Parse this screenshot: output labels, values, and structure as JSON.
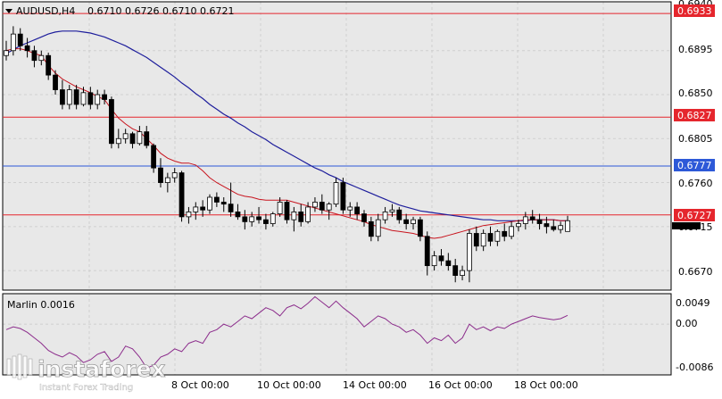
{
  "header": {
    "symbol": "AUDUSD,H4",
    "ohlc": "0.6710 0.6726 0.6710 0.6721"
  },
  "indicator": {
    "label": "Marlin 0.0016",
    "scale": [
      "0.0049",
      "0.00",
      "-0.0086"
    ]
  },
  "price_scale": [
    "0.6940",
    "0.6895",
    "0.6850",
    "0.6805",
    "0.6760",
    "0.6715",
    "0.6670"
  ],
  "price_tags": [
    {
      "value": "0.6933",
      "color": "#e5262d"
    },
    {
      "value": "0.6827",
      "color": "#e5262d"
    },
    {
      "value": "0.6777",
      "color": "#2d59d8"
    },
    {
      "value": "0.6727",
      "color": "#e5262d"
    }
  ],
  "time_labels": [
    "8 Oct 00:00",
    "10 Oct 00:00",
    "14 Oct 00:00",
    "16 Oct 00:00",
    "18 Oct 00:00"
  ],
  "watermark": {
    "brand": "instaforex",
    "tagline": "Instant Forex Trading"
  },
  "colors": {
    "background": "#e8e8e8",
    "grid": "#cfcfcf",
    "candle": "#000000",
    "ma_fast": "#c8141e",
    "ma_slow": "#1e1e9c",
    "marlin": "#8c2d8c",
    "level_red": "#e5262d",
    "level_blue": "#2d59d8"
  },
  "chart_data": {
    "type": "candlestick",
    "symbol": "AUDUSD",
    "timeframe": "H4",
    "ylim": [
      0.665,
      0.6945
    ],
    "levels": [
      0.6933,
      0.6827,
      0.6777,
      0.6727
    ],
    "candles": [
      [
        0.689,
        0.6905,
        0.6885,
        0.6895
      ],
      [
        0.6895,
        0.692,
        0.689,
        0.6912
      ],
      [
        0.6912,
        0.6918,
        0.6895,
        0.69
      ],
      [
        0.69,
        0.6908,
        0.6888,
        0.6895
      ],
      [
        0.6895,
        0.69,
        0.6878,
        0.6885
      ],
      [
        0.6885,
        0.6895,
        0.688,
        0.689
      ],
      [
        0.689,
        0.6893,
        0.6865,
        0.687
      ],
      [
        0.687,
        0.6875,
        0.685,
        0.6855
      ],
      [
        0.6855,
        0.6865,
        0.6835,
        0.684
      ],
      [
        0.684,
        0.686,
        0.6835,
        0.6855
      ],
      [
        0.6855,
        0.686,
        0.6835,
        0.684
      ],
      [
        0.684,
        0.6858,
        0.6838,
        0.6852
      ],
      [
        0.6852,
        0.6858,
        0.6835,
        0.684
      ],
      [
        0.684,
        0.6855,
        0.6835,
        0.685
      ],
      [
        0.685,
        0.6855,
        0.684,
        0.6845
      ],
      [
        0.6845,
        0.6848,
        0.6795,
        0.68
      ],
      [
        0.68,
        0.6815,
        0.6795,
        0.6805
      ],
      [
        0.6805,
        0.6815,
        0.68,
        0.681
      ],
      [
        0.681,
        0.6812,
        0.6795,
        0.68
      ],
      [
        0.68,
        0.6818,
        0.6798,
        0.6812
      ],
      [
        0.6812,
        0.6818,
        0.6795,
        0.6798
      ],
      [
        0.6798,
        0.68,
        0.677,
        0.6775
      ],
      [
        0.6775,
        0.6785,
        0.6755,
        0.676
      ],
      [
        0.676,
        0.677,
        0.675,
        0.6765
      ],
      [
        0.6765,
        0.6775,
        0.676,
        0.677
      ],
      [
        0.677,
        0.6772,
        0.672,
        0.6725
      ],
      [
        0.6725,
        0.6735,
        0.6718,
        0.673
      ],
      [
        0.673,
        0.674,
        0.6722,
        0.6735
      ],
      [
        0.6735,
        0.6742,
        0.6725,
        0.6732
      ],
      [
        0.6732,
        0.6748,
        0.6728,
        0.6745
      ],
      [
        0.6745,
        0.675,
        0.6735,
        0.674
      ],
      [
        0.674,
        0.6745,
        0.673,
        0.6738
      ],
      [
        0.6738,
        0.676,
        0.6725,
        0.673
      ],
      [
        0.673,
        0.6738,
        0.6722,
        0.6725
      ],
      [
        0.6725,
        0.6732,
        0.6712,
        0.672
      ],
      [
        0.672,
        0.673,
        0.6715,
        0.6725
      ],
      [
        0.6725,
        0.6735,
        0.6718,
        0.6722
      ],
      [
        0.6722,
        0.6728,
        0.6712,
        0.6718
      ],
      [
        0.6718,
        0.673,
        0.6715,
        0.6728
      ],
      [
        0.6728,
        0.6745,
        0.6725,
        0.674
      ],
      [
        0.674,
        0.6742,
        0.6718,
        0.6722
      ],
      [
        0.6722,
        0.6735,
        0.671,
        0.673
      ],
      [
        0.673,
        0.6738,
        0.6715,
        0.672
      ],
      [
        0.672,
        0.674,
        0.6718,
        0.6735
      ],
      [
        0.6735,
        0.6745,
        0.673,
        0.674
      ],
      [
        0.674,
        0.6748,
        0.6728,
        0.6732
      ],
      [
        0.6732,
        0.674,
        0.6722,
        0.6738
      ],
      [
        0.6738,
        0.6765,
        0.6735,
        0.676
      ],
      [
        0.676,
        0.6765,
        0.6728,
        0.6732
      ],
      [
        0.6732,
        0.674,
        0.6725,
        0.6735
      ],
      [
        0.6735,
        0.674,
        0.6722,
        0.6728
      ],
      [
        0.6728,
        0.6732,
        0.6715,
        0.672
      ],
      [
        0.672,
        0.6725,
        0.67,
        0.6705
      ],
      [
        0.6705,
        0.6728,
        0.67,
        0.6722
      ],
      [
        0.6722,
        0.6735,
        0.6718,
        0.673
      ],
      [
        0.673,
        0.6738,
        0.6725,
        0.6732
      ],
      [
        0.6732,
        0.6735,
        0.6718,
        0.6722
      ],
      [
        0.6722,
        0.6728,
        0.6712,
        0.6718
      ],
      [
        0.6718,
        0.6725,
        0.6712,
        0.6722
      ],
      [
        0.6722,
        0.6725,
        0.67,
        0.6705
      ],
      [
        0.6705,
        0.671,
        0.6665,
        0.6675
      ],
      [
        0.6675,
        0.669,
        0.667,
        0.6685
      ],
      [
        0.6685,
        0.6692,
        0.6675,
        0.668
      ],
      [
        0.668,
        0.6688,
        0.667,
        0.6675
      ],
      [
        0.6675,
        0.6682,
        0.6658,
        0.6665
      ],
      [
        0.6665,
        0.6675,
        0.666,
        0.667
      ],
      [
        0.667,
        0.6712,
        0.6658,
        0.6708
      ],
      [
        0.6708,
        0.6715,
        0.669,
        0.6695
      ],
      [
        0.6695,
        0.6712,
        0.669,
        0.6708
      ],
      [
        0.6708,
        0.6715,
        0.6695,
        0.67
      ],
      [
        0.67,
        0.6712,
        0.6695,
        0.671
      ],
      [
        0.671,
        0.6718,
        0.67,
        0.6705
      ],
      [
        0.6705,
        0.672,
        0.6702,
        0.6715
      ],
      [
        0.6715,
        0.6722,
        0.671,
        0.6718
      ],
      [
        0.6718,
        0.673,
        0.6712,
        0.6725
      ],
      [
        0.6725,
        0.6732,
        0.6718,
        0.6722
      ],
      [
        0.6722,
        0.6728,
        0.6712,
        0.6718
      ],
      [
        0.6718,
        0.6725,
        0.6708,
        0.6715
      ],
      [
        0.6715,
        0.6722,
        0.671,
        0.6712
      ],
      [
        0.6712,
        0.672,
        0.6708,
        0.6716
      ],
      [
        0.671,
        0.6726,
        0.671,
        0.6721
      ]
    ],
    "ma_fast": [
      0.6895,
      0.6897,
      0.6897,
      0.6895,
      0.6892,
      0.689,
      0.688,
      0.6872,
      0.6866,
      0.6862,
      0.6858,
      0.6855,
      0.6852,
      0.6848,
      0.6845,
      0.6835,
      0.6826,
      0.682,
      0.6815,
      0.6812,
      0.6805,
      0.6798,
      0.679,
      0.6785,
      0.6782,
      0.678,
      0.678,
      0.6778,
      0.6772,
      0.6765,
      0.676,
      0.6756,
      0.6752,
      0.6748,
      0.6746,
      0.6745,
      0.6743,
      0.6742,
      0.6742,
      0.6742,
      0.6742,
      0.674,
      0.6738,
      0.6736,
      0.6734,
      0.6732,
      0.673,
      0.6728,
      0.6726,
      0.6724,
      0.6722,
      0.672,
      0.6717,
      0.6715,
      0.6713,
      0.6711,
      0.671,
      0.6709,
      0.6708,
      0.6706,
      0.6704,
      0.6703,
      0.6704,
      0.6706,
      0.6708,
      0.671,
      0.6712,
      0.6714,
      0.6716,
      0.6717,
      0.6718,
      0.6719,
      0.672,
      0.6721,
      0.6722,
      0.6722,
      0.6722,
      0.6722,
      0.6722,
      0.6721,
      0.6721
    ],
    "ma_slow": [
      0.6892,
      0.6896,
      0.69,
      0.6903,
      0.6906,
      0.6909,
      0.6912,
      0.6914,
      0.6915,
      0.6915,
      0.6915,
      0.6914,
      0.6913,
      0.6911,
      0.6909,
      0.6906,
      0.6903,
      0.69,
      0.6896,
      0.6892,
      0.6888,
      0.6883,
      0.6878,
      0.6873,
      0.6868,
      0.6862,
      0.6857,
      0.6851,
      0.6846,
      0.684,
      0.6835,
      0.683,
      0.6826,
      0.6821,
      0.6817,
      0.6812,
      0.6808,
      0.6804,
      0.6799,
      0.6795,
      0.6791,
      0.6787,
      0.6783,
      0.6779,
      0.6775,
      0.6772,
      0.6768,
      0.6765,
      0.6761,
      0.6758,
      0.6755,
      0.6752,
      0.6749,
      0.6746,
      0.6743,
      0.674,
      0.6737,
      0.6735,
      0.6733,
      0.6731,
      0.673,
      0.6729,
      0.6728,
      0.6727,
      0.6726,
      0.6725,
      0.6724,
      0.6723,
      0.6722,
      0.6722,
      0.6721,
      0.6721,
      0.6721,
      0.6721,
      0.6721,
      0.6722,
      0.6722,
      0.6722,
      0.6722,
      0.6721,
      0.6721
    ],
    "marlin": {
      "ylim": [
        -0.0086,
        0.0049
      ],
      "values": [
        -0.001,
        -0.0005,
        -0.0008,
        -0.0015,
        -0.0025,
        -0.0035,
        -0.0048,
        -0.0055,
        -0.006,
        -0.0052,
        -0.0058,
        -0.007,
        -0.0065,
        -0.0055,
        -0.005,
        -0.0068,
        -0.006,
        -0.004,
        -0.0045,
        -0.006,
        -0.008,
        -0.0075,
        -0.006,
        -0.0055,
        -0.0045,
        -0.005,
        -0.0035,
        -0.003,
        -0.0035,
        -0.0015,
        -0.001,
        0.0,
        -0.0005,
        0.0005,
        0.0015,
        0.001,
        0.002,
        0.003,
        0.0025,
        0.0015,
        0.003,
        0.0035,
        0.0028,
        0.0038,
        0.005,
        0.004,
        0.003,
        0.0042,
        0.003,
        0.002,
        0.001,
        -0.0005,
        0.0005,
        0.0015,
        0.001,
        0.0,
        -0.0005,
        -0.0015,
        -0.001,
        -0.002,
        -0.0035,
        -0.0025,
        -0.003,
        -0.002,
        -0.0035,
        -0.0025,
        0.0,
        -0.001,
        -0.0005,
        -0.0012,
        -0.0005,
        -0.0008,
        0.0,
        0.0005,
        0.001,
        0.0015,
        0.0012,
        0.001,
        0.0008,
        0.001,
        0.0016
      ]
    }
  }
}
